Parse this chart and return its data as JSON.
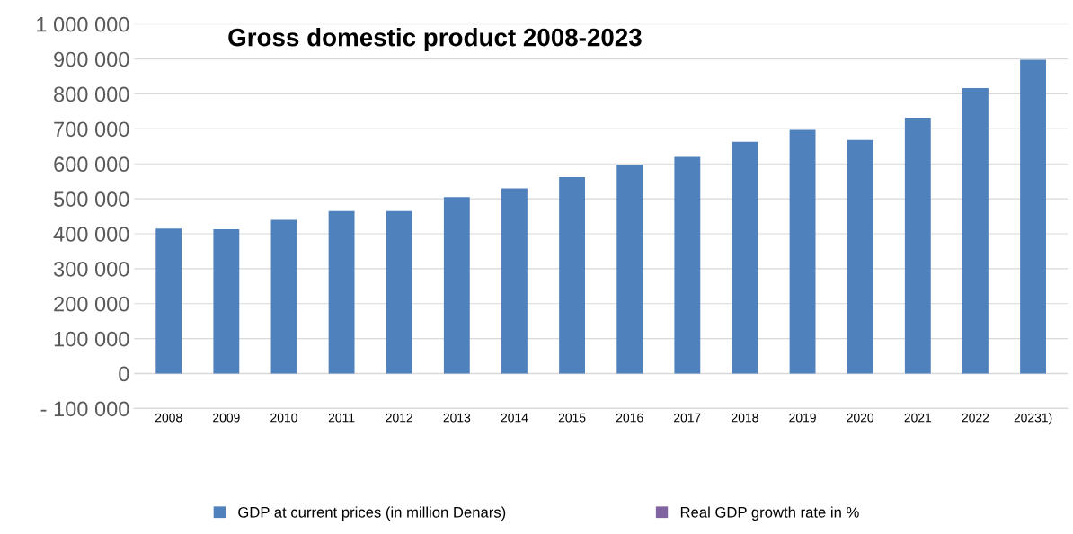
{
  "chart_data": {
    "type": "bar",
    "title": "Gross domestic product 2008-2023",
    "categories": [
      "2008",
      "2009",
      "2010",
      "2011",
      "2012",
      "2013",
      "2014",
      "2015",
      "2016",
      "2017",
      "2018",
      "2019",
      "2020",
      "2021",
      "2022",
      "20231)"
    ],
    "series": [
      {
        "name": "GDP at current prices (in million Denars)",
        "color": "#4f81bd",
        "values": [
          415000,
          413000,
          440000,
          465000,
          465000,
          505000,
          530000,
          562000,
          598000,
          620000,
          663000,
          697000,
          668000,
          732000,
          817000,
          898000
        ]
      },
      {
        "name": "Real GDP growth rate in %",
        "color": "#8064a2",
        "values": [
          null,
          null,
          null,
          null,
          null,
          null,
          null,
          null,
          null,
          null,
          null,
          null,
          null,
          null,
          null,
          null
        ]
      }
    ],
    "ylim": [
      -100000,
      1000000
    ],
    "yticks": [
      {
        "value": -100000,
        "label": "- 100 000"
      },
      {
        "value": 0,
        "label": "0"
      },
      {
        "value": 100000,
        "label": "100 000"
      },
      {
        "value": 200000,
        "label": "200 000"
      },
      {
        "value": 300000,
        "label": "300 000"
      },
      {
        "value": 400000,
        "label": "400 000"
      },
      {
        "value": 500000,
        "label": "500 000"
      },
      {
        "value": 600000,
        "label": "600 000"
      },
      {
        "value": 700000,
        "label": "700 000"
      },
      {
        "value": 800000,
        "label": "800 000"
      },
      {
        "value": 900000,
        "label": "900 000"
      },
      {
        "value": 1000000,
        "label": "1 000 000"
      }
    ],
    "grid": "y",
    "legend": "bottom"
  }
}
